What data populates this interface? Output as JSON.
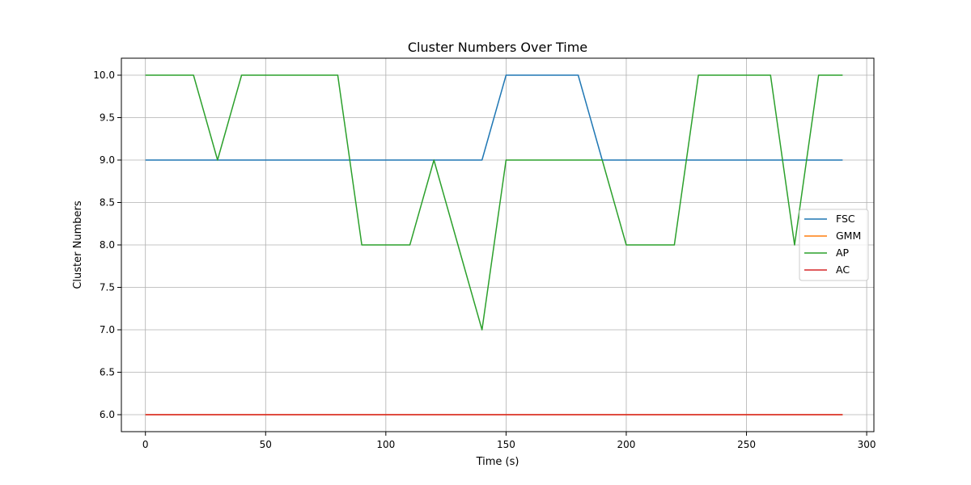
{
  "chart_data": {
    "type": "line",
    "title": "Cluster Numbers Over Time",
    "xlabel": "Time (s)",
    "ylabel": "Cluster Numbers",
    "xlim": [
      -10,
      303
    ],
    "ylim": [
      5.8,
      10.2
    ],
    "xticks": [
      0,
      50,
      100,
      150,
      200,
      250,
      300
    ],
    "yticks": [
      6.0,
      6.5,
      7.0,
      7.5,
      8.0,
      8.5,
      9.0,
      9.5,
      10.0
    ],
    "grid": true,
    "legend_position": "center-right",
    "x": [
      0,
      10,
      20,
      30,
      40,
      50,
      60,
      70,
      80,
      90,
      100,
      110,
      120,
      130,
      140,
      150,
      160,
      170,
      180,
      190,
      200,
      210,
      220,
      230,
      240,
      250,
      260,
      270,
      280,
      290
    ],
    "series": [
      {
        "name": "FSC",
        "color": "#1f77b4",
        "values": [
          9,
          9,
          9,
          9,
          9,
          9,
          9,
          9,
          9,
          9,
          9,
          9,
          9,
          9,
          9,
          10,
          10,
          10,
          10,
          9,
          9,
          9,
          9,
          9,
          9,
          9,
          9,
          9,
          9,
          9
        ]
      },
      {
        "name": "GMM",
        "color": "#ff7f0e",
        "values": [
          6,
          6,
          6,
          6,
          6,
          6,
          6,
          6,
          6,
          6,
          6,
          6,
          6,
          6,
          6,
          6,
          6,
          6,
          6,
          6,
          6,
          6,
          6,
          6,
          6,
          6,
          6,
          6,
          6,
          6
        ]
      },
      {
        "name": "AP",
        "color": "#2ca02c",
        "values": [
          10,
          10,
          10,
          9,
          10,
          10,
          10,
          10,
          10,
          8,
          8,
          8,
          9,
          8,
          7,
          9,
          9,
          9,
          9,
          9,
          8,
          8,
          8,
          10,
          10,
          10,
          10,
          8,
          10,
          10
        ]
      },
      {
        "name": "AC",
        "color": "#d62728",
        "values": [
          6,
          6,
          6,
          6,
          6,
          6,
          6,
          6,
          6,
          6,
          6,
          6,
          6,
          6,
          6,
          6,
          6,
          6,
          6,
          6,
          6,
          6,
          6,
          6,
          6,
          6,
          6,
          6,
          6,
          6
        ]
      }
    ]
  }
}
